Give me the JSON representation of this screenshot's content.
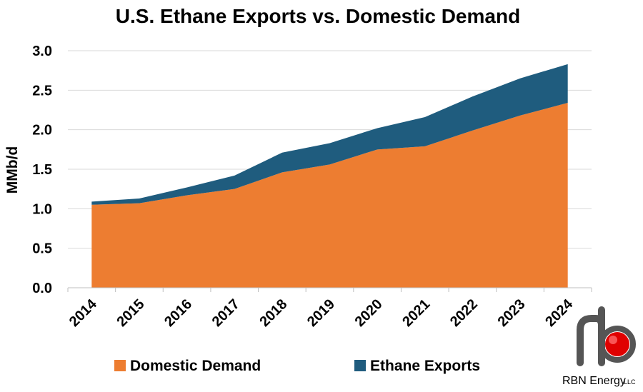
{
  "chart_data": {
    "type": "area",
    "stacked": true,
    "title": "U.S. Ethane Exports vs. Domestic Demand",
    "xlabel": "",
    "ylabel": "MMb/d",
    "categories": [
      "2014",
      "2015",
      "2016",
      "2017",
      "2018",
      "2019",
      "2020",
      "2021",
      "2022",
      "2023",
      "2024"
    ],
    "series": [
      {
        "name": "Domestic Demand",
        "color": "#ED7D31",
        "values": [
          1.05,
          1.07,
          1.17,
          1.25,
          1.46,
          1.56,
          1.75,
          1.79,
          1.99,
          2.18,
          2.34
        ]
      },
      {
        "name": "Ethane Exports",
        "color": "#1F5C7E",
        "values": [
          0.04,
          0.06,
          0.1,
          0.17,
          0.25,
          0.27,
          0.27,
          0.37,
          0.43,
          0.47,
          0.49
        ]
      }
    ],
    "ylim": [
      0,
      3.0
    ],
    "yticks": [
      "0.0",
      "0.5",
      "1.0",
      "1.5",
      "2.0",
      "2.5",
      "3.0"
    ],
    "grid": true,
    "legend_position": "bottom"
  },
  "logo": {
    "text": "RBN Energy",
    "suffix": "LLC",
    "accent_color": "#E00000"
  }
}
